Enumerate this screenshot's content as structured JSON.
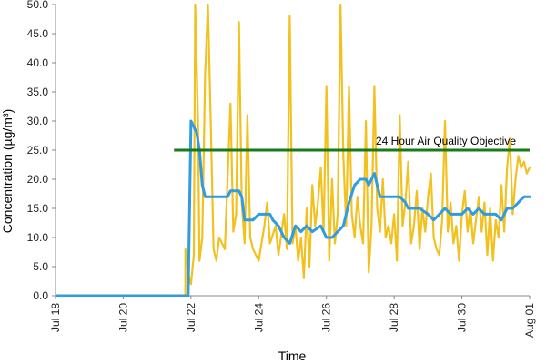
{
  "chart_data": {
    "type": "line",
    "title": "",
    "xlabel": "Time",
    "ylabel": "Concentration (µg/m³)",
    "ylim": [
      0,
      50
    ],
    "y_ticks": [
      "0.0",
      "5.0",
      "10.0",
      "15.0",
      "20.0",
      "25.0",
      "30.0",
      "35.0",
      "40.0",
      "45.0",
      "50.0"
    ],
    "x_axis": {
      "start": "2021-07-18",
      "end": "2021-08-01",
      "tick_dates": [
        "2021-07-18",
        "2021-07-20",
        "2021-07-22",
        "2021-07-24",
        "2021-07-26",
        "2021-07-28",
        "2021-07-30",
        "2021-08-01"
      ],
      "tick_labels": [
        "Jul 18",
        "Jul 20",
        "Jul 22",
        "Jul 24",
        "Jul 26",
        "Jul 28",
        "Jul 30",
        "Aug 01"
      ]
    },
    "grid": false,
    "legend": "none",
    "colors": {
      "hourly": "#F2C11F",
      "rolling": "#2F9BE0",
      "objective": "#1A7A1A"
    },
    "objective": {
      "label": "24 Hour Air Quality Objective",
      "value": 25,
      "x_start": "2021-07-21 12:00",
      "x_end": "2021-08-01 00:00"
    },
    "series": [
      {
        "key": "hourly",
        "points": [
          [
            "2021-07-18 00:00",
            0
          ],
          [
            "2021-07-21 20:00",
            0
          ],
          [
            "2021-07-21 20:00",
            8
          ],
          [
            "2021-07-21 22:00",
            4
          ],
          [
            "2021-07-22 00:00",
            2
          ],
          [
            "2021-07-22 02:00",
            7
          ],
          [
            "2021-07-22 03:00",
            50
          ],
          [
            "2021-07-22 05:00",
            30
          ],
          [
            "2021-07-22 06:00",
            6
          ],
          [
            "2021-07-22 08:00",
            10
          ],
          [
            "2021-07-22 10:00",
            38
          ],
          [
            "2021-07-22 12:00",
            50
          ],
          [
            "2021-07-22 14:00",
            30
          ],
          [
            "2021-07-22 16:00",
            8
          ],
          [
            "2021-07-22 18:00",
            6
          ],
          [
            "2021-07-22 20:00",
            10
          ],
          [
            "2021-07-23 00:00",
            8
          ],
          [
            "2021-07-23 04:00",
            33
          ],
          [
            "2021-07-23 06:00",
            11
          ],
          [
            "2021-07-23 08:00",
            14
          ],
          [
            "2021-07-23 10:00",
            47
          ],
          [
            "2021-07-23 12:00",
            16
          ],
          [
            "2021-07-23 14:00",
            9
          ],
          [
            "2021-07-23 16:00",
            31
          ],
          [
            "2021-07-23 18:00",
            10
          ],
          [
            "2021-07-23 20:00",
            8
          ],
          [
            "2021-07-24 00:00",
            6
          ],
          [
            "2021-07-24 04:00",
            12
          ],
          [
            "2021-07-24 06:00",
            16
          ],
          [
            "2021-07-24 08:00",
            9
          ],
          [
            "2021-07-24 12:00",
            12
          ],
          [
            "2021-07-24 14:00",
            7
          ],
          [
            "2021-07-24 18:00",
            14
          ],
          [
            "2021-07-24 20:00",
            8
          ],
          [
            "2021-07-24 22:00",
            48
          ],
          [
            "2021-07-25 00:00",
            9
          ],
          [
            "2021-07-25 02:00",
            12
          ],
          [
            "2021-07-25 04:00",
            6
          ],
          [
            "2021-07-25 06:00",
            10
          ],
          [
            "2021-07-25 08:00",
            3
          ],
          [
            "2021-07-25 10:00",
            15
          ],
          [
            "2021-07-25 12:00",
            5
          ],
          [
            "2021-07-25 14:00",
            19
          ],
          [
            "2021-07-25 16:00",
            12
          ],
          [
            "2021-07-25 18:00",
            16
          ],
          [
            "2021-07-25 20:00",
            22
          ],
          [
            "2021-07-25 22:00",
            11
          ],
          [
            "2021-07-26 00:00",
            36
          ],
          [
            "2021-07-26 02:00",
            6
          ],
          [
            "2021-07-26 04:00",
            20
          ],
          [
            "2021-07-26 06:00",
            9
          ],
          [
            "2021-07-26 08:00",
            14
          ],
          [
            "2021-07-26 10:00",
            50
          ],
          [
            "2021-07-26 12:00",
            24
          ],
          [
            "2021-07-26 14:00",
            12
          ],
          [
            "2021-07-26 16:00",
            36
          ],
          [
            "2021-07-26 18:00",
            14
          ],
          [
            "2021-07-26 20:00",
            10
          ],
          [
            "2021-07-26 22:00",
            17
          ],
          [
            "2021-07-27 00:00",
            12
          ],
          [
            "2021-07-27 02:00",
            9
          ],
          [
            "2021-07-27 04:00",
            30
          ],
          [
            "2021-07-27 06:00",
            4
          ],
          [
            "2021-07-27 08:00",
            12
          ],
          [
            "2021-07-27 10:00",
            36
          ],
          [
            "2021-07-27 12:00",
            15
          ],
          [
            "2021-07-27 14:00",
            11
          ],
          [
            "2021-07-27 16:00",
            20
          ],
          [
            "2021-07-27 18:00",
            10
          ],
          [
            "2021-07-27 20:00",
            12
          ],
          [
            "2021-07-27 22:00",
            9
          ],
          [
            "2021-07-28 00:00",
            14
          ],
          [
            "2021-07-28 02:00",
            6
          ],
          [
            "2021-07-28 04:00",
            31
          ],
          [
            "2021-07-28 06:00",
            12
          ],
          [
            "2021-07-28 08:00",
            16
          ],
          [
            "2021-07-28 10:00",
            23
          ],
          [
            "2021-07-28 12:00",
            9
          ],
          [
            "2021-07-28 14:00",
            12
          ],
          [
            "2021-07-28 16:00",
            18
          ],
          [
            "2021-07-28 18:00",
            8
          ],
          [
            "2021-07-28 20:00",
            15
          ],
          [
            "2021-07-28 22:00",
            11
          ],
          [
            "2021-07-29 00:00",
            17
          ],
          [
            "2021-07-29 02:00",
            21
          ],
          [
            "2021-07-29 04:00",
            10
          ],
          [
            "2021-07-29 06:00",
            8
          ],
          [
            "2021-07-29 08:00",
            7
          ],
          [
            "2021-07-29 10:00",
            13
          ],
          [
            "2021-07-29 12:00",
            30
          ],
          [
            "2021-07-29 14:00",
            11
          ],
          [
            "2021-07-29 16:00",
            16
          ],
          [
            "2021-07-29 18:00",
            9
          ],
          [
            "2021-07-29 20:00",
            12
          ],
          [
            "2021-07-29 22:00",
            6
          ],
          [
            "2021-07-30 00:00",
            14
          ],
          [
            "2021-07-30 02:00",
            18
          ],
          [
            "2021-07-30 04:00",
            11
          ],
          [
            "2021-07-30 06:00",
            15
          ],
          [
            "2021-07-30 08:00",
            9
          ],
          [
            "2021-07-30 10:00",
            13
          ],
          [
            "2021-07-30 12:00",
            17
          ],
          [
            "2021-07-30 14:00",
            11
          ],
          [
            "2021-07-30 16:00",
            16
          ],
          [
            "2021-07-30 18:00",
            7
          ],
          [
            "2021-07-30 20:00",
            15
          ],
          [
            "2021-07-30 22:00",
            6
          ],
          [
            "2021-07-31 00:00",
            13
          ],
          [
            "2021-07-31 02:00",
            10
          ],
          [
            "2021-07-31 04:00",
            19
          ],
          [
            "2021-07-31 06:00",
            11
          ],
          [
            "2021-07-31 08:00",
            22
          ],
          [
            "2021-07-31 10:00",
            27
          ],
          [
            "2021-07-31 12:00",
            14
          ],
          [
            "2021-07-31 14:00",
            20
          ],
          [
            "2021-07-31 16:00",
            24
          ],
          [
            "2021-07-31 18:00",
            22
          ],
          [
            "2021-07-31 20:00",
            23
          ],
          [
            "2021-07-31 22:00",
            21
          ],
          [
            "2021-08-01 00:00",
            22
          ]
        ]
      },
      {
        "key": "rolling",
        "points": [
          [
            "2021-07-18 00:00",
            0
          ],
          [
            "2021-07-21 22:00",
            0
          ],
          [
            "2021-07-22 00:00",
            30
          ],
          [
            "2021-07-22 04:00",
            28
          ],
          [
            "2021-07-22 06:00",
            25
          ],
          [
            "2021-07-22 08:00",
            19
          ],
          [
            "2021-07-22 10:00",
            17
          ],
          [
            "2021-07-23 00:00",
            17
          ],
          [
            "2021-07-23 02:00",
            17
          ],
          [
            "2021-07-23 04:00",
            18
          ],
          [
            "2021-07-23 10:00",
            18
          ],
          [
            "2021-07-23 12:00",
            17
          ],
          [
            "2021-07-23 14:00",
            13
          ],
          [
            "2021-07-23 20:00",
            13
          ],
          [
            "2021-07-24 00:00",
            14
          ],
          [
            "2021-07-24 08:00",
            14
          ],
          [
            "2021-07-24 10:00",
            13
          ],
          [
            "2021-07-24 14:00",
            12
          ],
          [
            "2021-07-24 18:00",
            10
          ],
          [
            "2021-07-24 22:00",
            9
          ],
          [
            "2021-07-25 02:00",
            12
          ],
          [
            "2021-07-25 06:00",
            11
          ],
          [
            "2021-07-25 10:00",
            12
          ],
          [
            "2021-07-25 14:00",
            11
          ],
          [
            "2021-07-25 20:00",
            12
          ],
          [
            "2021-07-26 00:00",
            10
          ],
          [
            "2021-07-26 04:00",
            10
          ],
          [
            "2021-07-26 08:00",
            11
          ],
          [
            "2021-07-26 12:00",
            12
          ],
          [
            "2021-07-26 16:00",
            16
          ],
          [
            "2021-07-26 20:00",
            19
          ],
          [
            "2021-07-27 00:00",
            20
          ],
          [
            "2021-07-27 04:00",
            20
          ],
          [
            "2021-07-27 06:00",
            19
          ],
          [
            "2021-07-27 08:00",
            20
          ],
          [
            "2021-07-27 10:00",
            21
          ],
          [
            "2021-07-27 14:00",
            17
          ],
          [
            "2021-07-28 04:00",
            17
          ],
          [
            "2021-07-28 08:00",
            16
          ],
          [
            "2021-07-28 10:00",
            15
          ],
          [
            "2021-07-28 18:00",
            15
          ],
          [
            "2021-07-29 00:00",
            14
          ],
          [
            "2021-07-29 04:00",
            13
          ],
          [
            "2021-07-29 08:00",
            14
          ],
          [
            "2021-07-29 12:00",
            15
          ],
          [
            "2021-07-29 16:00",
            14
          ],
          [
            "2021-07-30 00:00",
            14
          ],
          [
            "2021-07-30 04:00",
            15
          ],
          [
            "2021-07-30 08:00",
            14
          ],
          [
            "2021-07-30 12:00",
            15
          ],
          [
            "2021-07-30 16:00",
            14
          ],
          [
            "2021-07-31 00:00",
            14
          ],
          [
            "2021-07-31 04:00",
            13
          ],
          [
            "2021-07-31 08:00",
            15
          ],
          [
            "2021-07-31 12:00",
            15
          ],
          [
            "2021-07-31 16:00",
            16
          ],
          [
            "2021-07-31 20:00",
            17
          ],
          [
            "2021-08-01 00:00",
            17
          ]
        ]
      }
    ]
  }
}
